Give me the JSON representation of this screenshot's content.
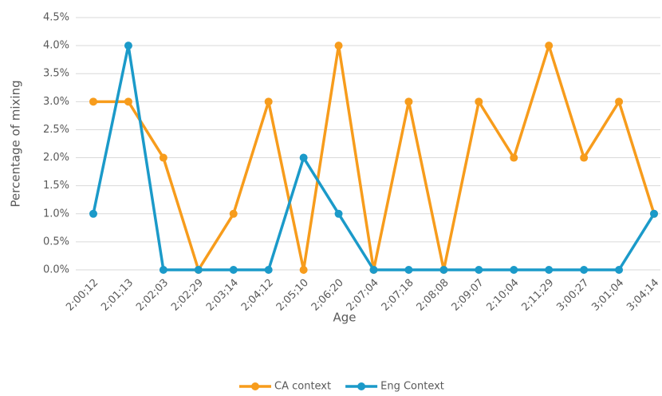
{
  "chart_data": {
    "type": "line",
    "x_label": "Age",
    "y_label": "Percentage of mixing",
    "categories": [
      "2;00;12",
      "2;01;13",
      "2;02;03",
      "2;02;29",
      "2;03;14",
      "2;04;12",
      "2;05;10",
      "2;06;20",
      "2;07;04",
      "2;07;18",
      "2;08;08",
      "2;09;07",
      "2;10;04",
      "2;11;29",
      "3;00;27",
      "3;01;04",
      "3;04;14"
    ],
    "series": [
      {
        "name": "CA context",
        "color": "#f79c1c",
        "values": [
          3,
          3,
          2,
          0,
          1,
          3,
          0,
          4,
          0,
          3,
          0,
          3,
          2,
          4,
          2,
          3,
          1
        ]
      },
      {
        "name": "Eng Context",
        "color": "#1b9ac9",
        "values": [
          1,
          4,
          0,
          0,
          0,
          0,
          2,
          1,
          0,
          0,
          0,
          0,
          0,
          0,
          0,
          0,
          1
        ]
      }
    ],
    "ylim": [
      0,
      4.5
    ],
    "yticks": [
      {
        "value": 0,
        "label": "0.0%"
      },
      {
        "value": 0.5,
        "label": "0.5%"
      },
      {
        "value": 1,
        "label": "1.0%"
      },
      {
        "value": 1.5,
        "label": "1.5%"
      },
      {
        "value": 2,
        "label": "2.0%"
      },
      {
        "value": 2.5,
        "label": "2.5%"
      },
      {
        "value": 3,
        "label": "3.0%"
      },
      {
        "value": 3.5,
        "label": "3.5%"
      },
      {
        "value": 4,
        "label": "4.0%"
      },
      {
        "value": 4.5,
        "label": "4.5%"
      }
    ],
    "grid": true,
    "legend": "bottom"
  }
}
